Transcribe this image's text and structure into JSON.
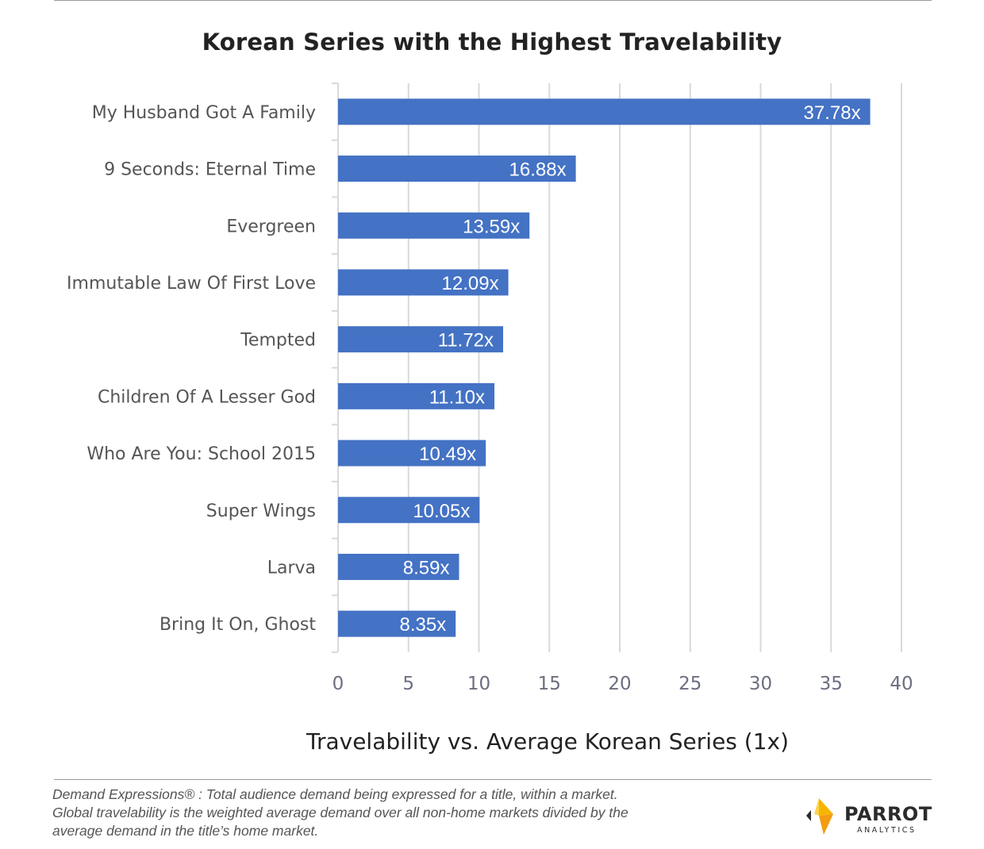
{
  "chart_data": {
    "type": "bar",
    "orientation": "horizontal",
    "title": "Korean Series with the Highest Travelability",
    "xlabel": "Travelability vs. Average Korean Series (1x)",
    "ylabel": "",
    "categories": [
      "My Husband Got A Family",
      "9 Seconds: Eternal Time",
      "Evergreen",
      "Immutable Law Of First Love",
      "Tempted",
      "Children Of A Lesser God",
      "Who Are You: School 2015",
      "Super Wings",
      "Larva",
      "Bring It On, Ghost"
    ],
    "values": [
      37.78,
      16.88,
      13.59,
      12.09,
      11.72,
      11.1,
      10.49,
      10.05,
      8.59,
      8.35
    ],
    "data_labels": [
      "37.78x",
      "16.88x",
      "13.59x",
      "12.09x",
      "11.72x",
      "11.10x",
      "10.49x",
      "10.05x",
      "8.59x",
      "8.35x"
    ],
    "xlim": [
      0,
      40
    ],
    "xticks": [
      "0",
      "5",
      "10",
      "15",
      "20",
      "25",
      "30",
      "35",
      "40"
    ],
    "grid": "vertical",
    "bar_color": "#4472c4"
  },
  "footnote": {
    "line1": "Demand Expressions® :  Total audience demand being expressed for a title, within a market.",
    "line2": "Global travelability is the weighted average demand over all non-home markets divided by the",
    "line3": "average demand in the title’s home market."
  },
  "logo": {
    "word": "PARROT",
    "sub": "ANALYTICS",
    "icon": "parrot-logo-icon"
  }
}
